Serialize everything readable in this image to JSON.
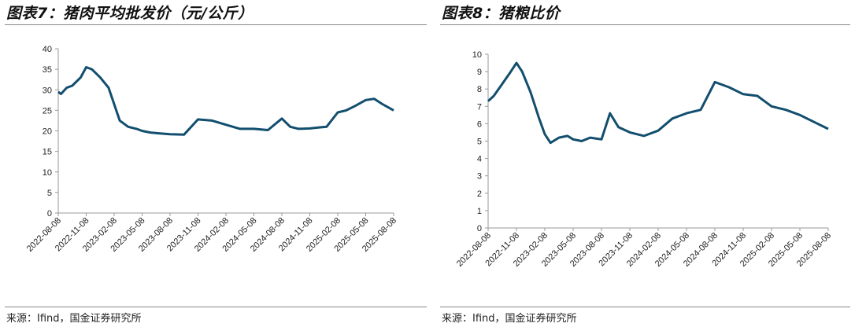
{
  "charts": [
    {
      "figure_title": "图表7：猪肉平均批发价（元/公斤）",
      "source": "来源：Ifind，国金证券研究所"
    },
    {
      "figure_title": "图表8：猪粮比价",
      "source": "来源：Ifind，国金证券研究所"
    }
  ],
  "colors": {
    "line": "#124e6e",
    "rule": "#888888"
  },
  "chart_data": [
    {
      "type": "line",
      "title": "猪肉平均批发价（元/公斤）",
      "xlabel": "",
      "ylabel": "",
      "ylim": [
        0,
        40
      ],
      "yticks": [
        0,
        5,
        10,
        15,
        20,
        25,
        30,
        35,
        40
      ],
      "xticks": [
        "2022-08-08",
        "2022-11-08",
        "2023-02-08",
        "2023-05-08",
        "2023-08-08",
        "2023-11-08",
        "2024-02-08",
        "2024-05-08",
        "2024-08-08",
        "2024-11-08",
        "2025-02-08",
        "2025-05-08",
        "2025-08-08"
      ],
      "series": [
        {
          "name": "猪肉平均批发价",
          "x": [
            0,
            0.1,
            0.3,
            0.5,
            0.8,
            1,
            1.2,
            1.5,
            1.8,
            2,
            2.2,
            2.5,
            2.8,
            3,
            3.3,
            3.6,
            4,
            4.5,
            5,
            5.5,
            6,
            6.5,
            7,
            7.5,
            8,
            8.3,
            8.6,
            9,
            9.3,
            9.6,
            10,
            10.3,
            10.6,
            11,
            11.3,
            11.6,
            12
          ],
          "values": [
            29.5,
            29,
            30.5,
            31,
            33,
            35.5,
            35,
            33,
            30.5,
            26.5,
            22.5,
            21,
            20.5,
            20,
            19.6,
            19.4,
            19.2,
            19.1,
            22.8,
            22.5,
            21.5,
            20.5,
            20.5,
            20.2,
            23,
            21,
            20.5,
            20.6,
            20.8,
            21,
            24.5,
            25,
            26,
            27.5,
            27.8,
            26.5,
            25
          ]
        }
      ]
    },
    {
      "type": "line",
      "title": "猪粮比价",
      "xlabel": "",
      "ylabel": "",
      "ylim": [
        0,
        10
      ],
      "yticks": [
        0,
        1,
        2,
        3,
        4,
        5,
        6,
        7,
        8,
        9,
        10
      ],
      "xticks": [
        "2022-08-08",
        "2022-11-08",
        "2023-02-08",
        "2023-05-08",
        "2023-08-08",
        "2023-11-08",
        "2024-02-08",
        "2024-05-08",
        "2024-08-08",
        "2024-11-08",
        "2025-02-08",
        "2025-05-08",
        "2025-08-08"
      ],
      "series": [
        {
          "name": "猪粮比价",
          "x": [
            0,
            0.2,
            0.5,
            0.8,
            1,
            1.2,
            1.5,
            1.8,
            2,
            2.2,
            2.5,
            2.8,
            3,
            3.3,
            3.6,
            4,
            4.3,
            4.6,
            5,
            5.5,
            6,
            6.5,
            7,
            7.5,
            8,
            8.5,
            9,
            9.5,
            10,
            10.5,
            11,
            11.5,
            12
          ],
          "values": [
            7.3,
            7.6,
            8.3,
            9,
            9.5,
            9,
            7.8,
            6.3,
            5.4,
            4.9,
            5.2,
            5.3,
            5.1,
            5.0,
            5.2,
            5.1,
            6.6,
            5.8,
            5.5,
            5.3,
            5.6,
            6.3,
            6.6,
            6.8,
            8.4,
            8.1,
            7.7,
            7.6,
            7.0,
            6.8,
            6.5,
            6.1,
            5.7
          ]
        }
      ]
    }
  ]
}
